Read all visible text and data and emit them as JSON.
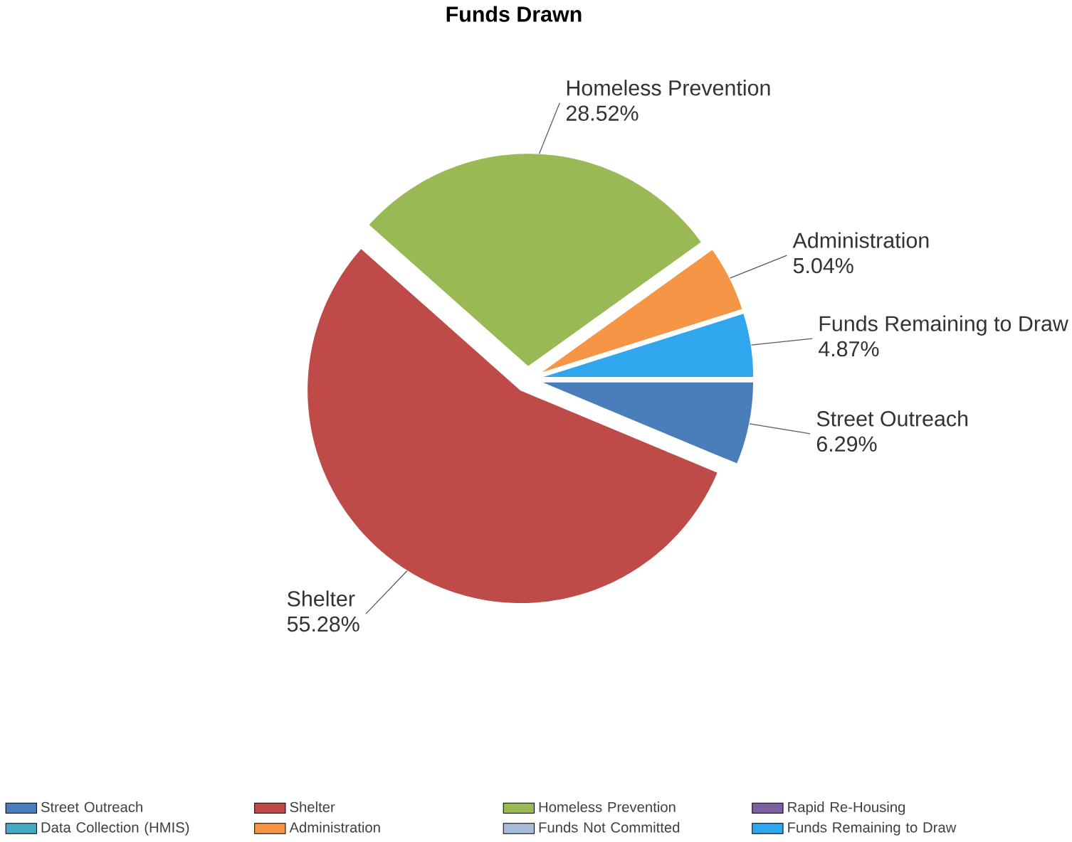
{
  "chart_data": {
    "type": "pie",
    "title": "Funds Drawn",
    "categories": [
      "Street Outreach",
      "Shelter",
      "Homeless Prevention",
      "Rapid Re-Housing",
      "Data Collection (HMIS)",
      "Administration",
      "Funds Not Committed",
      "Funds Remaining to Draw"
    ],
    "values": [
      6.29,
      55.28,
      28.52,
      0,
      0,
      5.04,
      0,
      4.87
    ],
    "value_labels": [
      "6.29%",
      "55.28%",
      "28.52%",
      null,
      null,
      "5.04%",
      null,
      "4.87%"
    ],
    "colors": [
      "#4a7ebb",
      "#be4b48",
      "#98b954",
      "#7d60a0",
      "#46aac5",
      "#f69545",
      "#a8bbd6",
      "#2fa6ee"
    ],
    "legend": "bottom"
  }
}
